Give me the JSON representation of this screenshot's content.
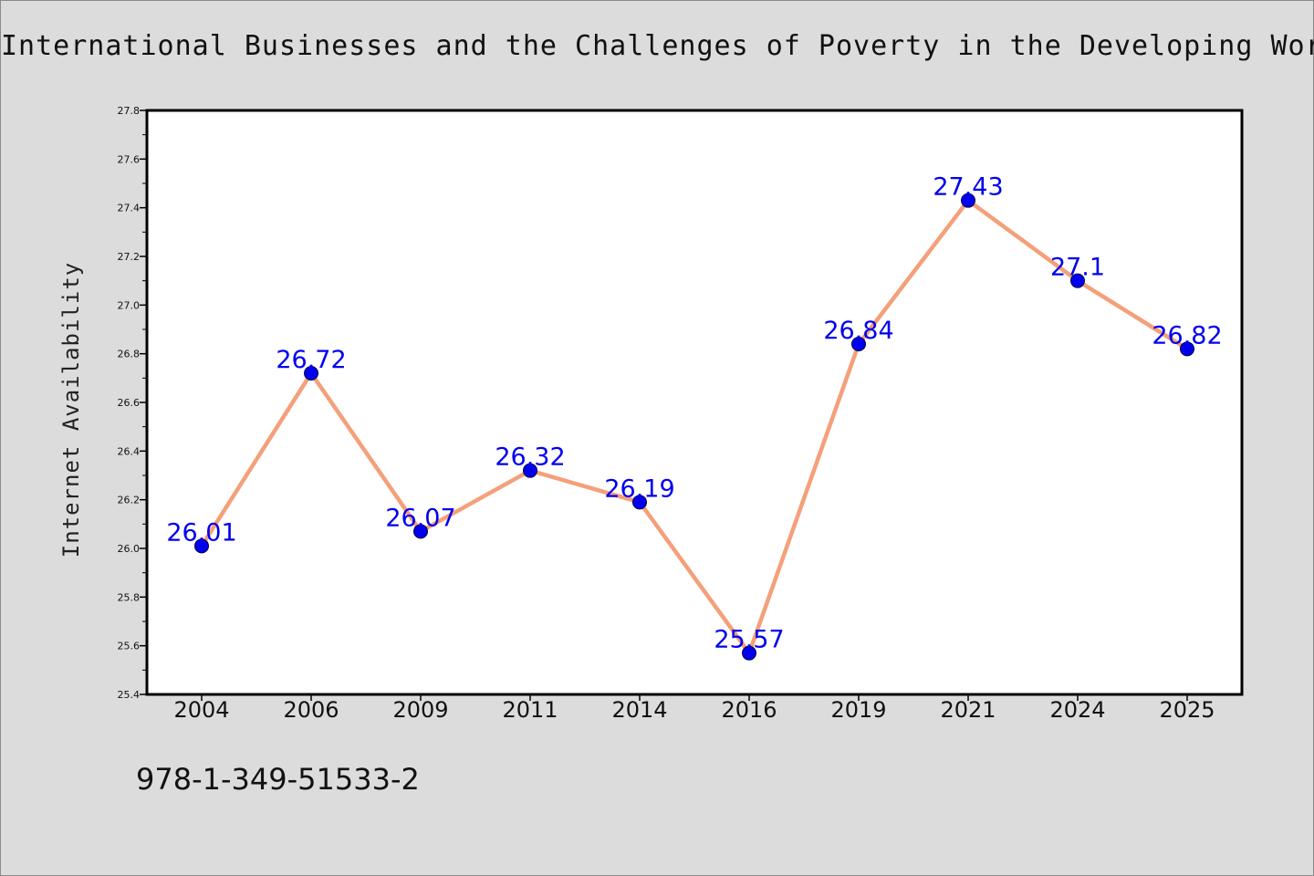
{
  "chart_data": {
    "type": "line",
    "title": "International Businesses and the Challenges of Poverty in the Developing World",
    "xlabel": "",
    "ylabel": "Internet Availability",
    "categories": [
      "2004",
      "2006",
      "2009",
      "2011",
      "2014",
      "2016",
      "2019",
      "2021",
      "2024",
      "2025"
    ],
    "series": [
      {
        "values": [
          26.01,
          26.72,
          26.07,
          26.32,
          26.19,
          25.57,
          26.84,
          27.43,
          27.1,
          26.82
        ],
        "data_labels": [
          "26.01",
          "26.72",
          "26.07",
          "26.32",
          "26.19",
          "25.57",
          "26.84",
          "27.43",
          "27.1",
          "26.82"
        ]
      }
    ],
    "ylim": [
      25.4,
      27.8
    ],
    "yticks": [
      "25.4",
      "25.6",
      "25.8",
      "26.0",
      "26.2",
      "26.4",
      "26.6",
      "26.8",
      "27.0",
      "27.2",
      "27.4",
      "27.6",
      "27.8"
    ],
    "grid": false,
    "legend": "none",
    "colors": {
      "line": "#f4a07a",
      "marker": "#0000ee",
      "data_label": "#0000ee",
      "background": "#dcdcdc",
      "plot_background": "#ffffff"
    }
  },
  "footer": {
    "isbn": "978-1-349-51533-2"
  }
}
